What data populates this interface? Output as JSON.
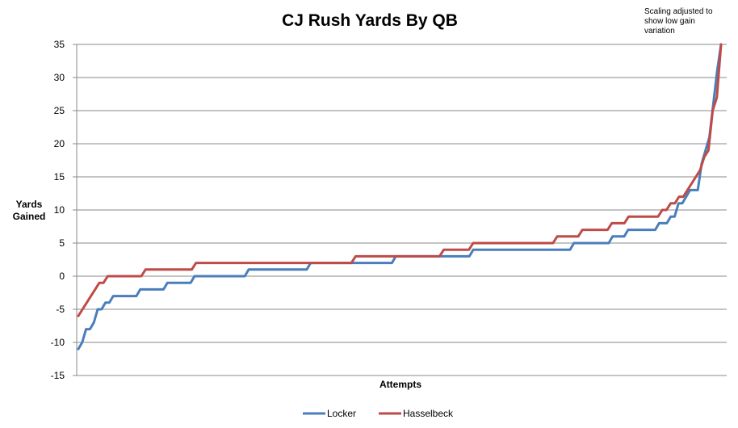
{
  "chart_data": {
    "type": "line",
    "title": "CJ Rush Yards By QB",
    "annotation": "Scaling adjusted to show low gain variation",
    "xlabel": "Attempts",
    "ylabel": "Yards Gained",
    "ylim": [
      -15,
      35
    ],
    "yticks": [
      -15,
      -10,
      -5,
      0,
      5,
      10,
      15,
      20,
      25,
      30,
      35
    ],
    "grid": true,
    "legend_position": "bottom",
    "series": [
      {
        "name": "Locker",
        "color": "#4A7EBB",
        "values": [
          -11,
          -10,
          -8,
          -8,
          -7,
          -5,
          -5,
          -4,
          -4,
          -3,
          -3,
          -3,
          -3,
          -3,
          -3,
          -3,
          -2,
          -2,
          -2,
          -2,
          -2,
          -2,
          -2,
          -1,
          -1,
          -1,
          -1,
          -1,
          -1,
          -1,
          0,
          0,
          0,
          0,
          0,
          0,
          0,
          0,
          0,
          0,
          0,
          0,
          0,
          0,
          1,
          1,
          1,
          1,
          1,
          1,
          1,
          1,
          1,
          1,
          1,
          1,
          1,
          1,
          1,
          1,
          2,
          2,
          2,
          2,
          2,
          2,
          2,
          2,
          2,
          2,
          2,
          2,
          2,
          2,
          2,
          2,
          2,
          2,
          2,
          2,
          2,
          2,
          3,
          3,
          3,
          3,
          3,
          3,
          3,
          3,
          3,
          3,
          3,
          3,
          3,
          3,
          3,
          3,
          3,
          3,
          3,
          3,
          4,
          4,
          4,
          4,
          4,
          4,
          4,
          4,
          4,
          4,
          4,
          4,
          4,
          4,
          4,
          4,
          4,
          4,
          4,
          4,
          4,
          4,
          4,
          4,
          4,
          4,
          5,
          5,
          5,
          5,
          5,
          5,
          5,
          5,
          5,
          5,
          6,
          6,
          6,
          6,
          7,
          7,
          7,
          7,
          7,
          7,
          7,
          7,
          8,
          8,
          8,
          9,
          9,
          11,
          11,
          12,
          13,
          13,
          13,
          17,
          19,
          21,
          26,
          31,
          35
        ]
      },
      {
        "name": "Hasselbeck",
        "color": "#BE4B48",
        "values": [
          -6,
          -5,
          -4,
          -3,
          -2,
          -1,
          -1,
          0,
          0,
          0,
          0,
          0,
          0,
          0,
          0,
          0,
          1,
          1,
          1,
          1,
          1,
          1,
          1,
          1,
          1,
          1,
          1,
          1,
          2,
          2,
          2,
          2,
          2,
          2,
          2,
          2,
          2,
          2,
          2,
          2,
          2,
          2,
          2,
          2,
          2,
          2,
          2,
          2,
          2,
          2,
          2,
          2,
          2,
          2,
          2,
          2,
          2,
          2,
          2,
          2,
          2,
          2,
          2,
          2,
          2,
          2,
          3,
          3,
          3,
          3,
          3,
          3,
          3,
          3,
          3,
          3,
          3,
          3,
          3,
          3,
          3,
          3,
          3,
          3,
          3,
          3,
          3,
          4,
          4,
          4,
          4,
          4,
          4,
          4,
          5,
          5,
          5,
          5,
          5,
          5,
          5,
          5,
          5,
          5,
          5,
          5,
          5,
          5,
          5,
          5,
          5,
          5,
          5,
          5,
          6,
          6,
          6,
          6,
          6,
          6,
          7,
          7,
          7,
          7,
          7,
          7,
          7,
          8,
          8,
          8,
          8,
          9,
          9,
          9,
          9,
          9,
          9,
          9,
          9,
          10,
          10,
          11,
          11,
          12,
          12,
          13,
          14,
          15,
          16,
          18,
          19,
          25,
          27,
          35
        ]
      }
    ]
  }
}
